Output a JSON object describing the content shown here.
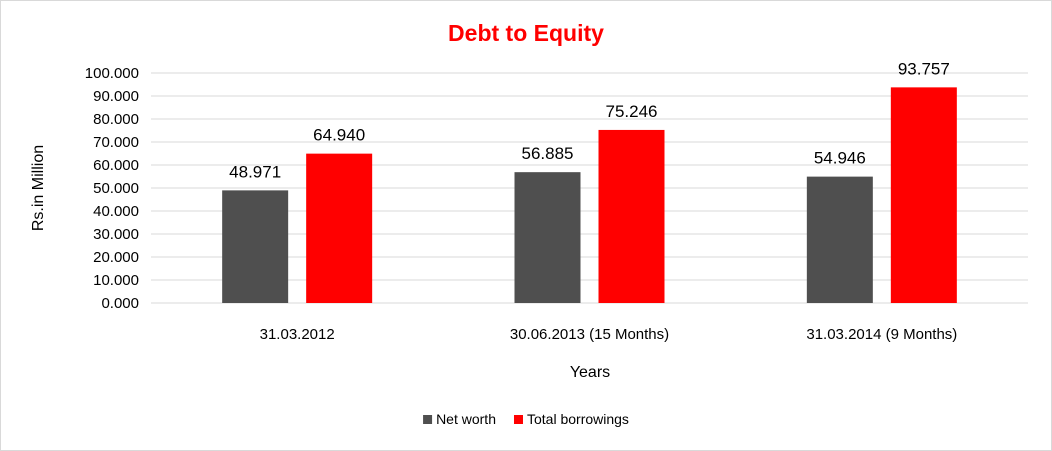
{
  "chart_data": {
    "type": "bar",
    "title": "Debt to Equity",
    "title_color": "#ff0000",
    "xlabel": "Years",
    "ylabel": "Rs.in Million",
    "ylim": [
      0,
      100
    ],
    "y_ticks": [
      "0.000",
      "10.000",
      "20.000",
      "30.000",
      "40.000",
      "50.000",
      "60.000",
      "70.000",
      "80.000",
      "90.000",
      "100.000"
    ],
    "categories": [
      "31.03.2012",
      "30.06.2013 (15 Months)",
      "31.03.2014 (9 Months)"
    ],
    "series": [
      {
        "name": "Net worth",
        "color": "#4f4f4f",
        "values": [
          48.971,
          56.885,
          54.946
        ],
        "labels": [
          "48.971",
          "56.885",
          "54.946"
        ]
      },
      {
        "name": "Total borrowings",
        "color": "#ff0000",
        "values": [
          64.94,
          75.246,
          93.757
        ],
        "labels": [
          "64.940",
          "75.246",
          "93.757"
        ]
      }
    ],
    "grid": true,
    "legend_position": "bottom"
  }
}
